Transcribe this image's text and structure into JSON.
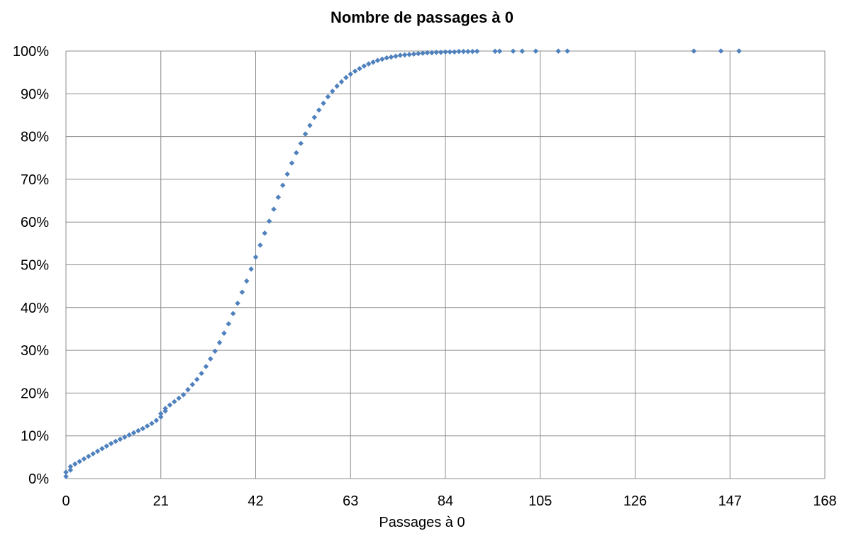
{
  "chart_data": {
    "type": "scatter",
    "title": "Nombre de passages à 0",
    "xlabel": "Passages à 0",
    "ylabel": "",
    "xlim": [
      0,
      168
    ],
    "ylim": [
      0,
      1
    ],
    "x_ticks": [
      0,
      21,
      42,
      63,
      84,
      105,
      126,
      147,
      168
    ],
    "x_tick_labels": [
      "0",
      "21",
      "42",
      "63",
      "84",
      "105",
      "126",
      "147",
      "168"
    ],
    "y_ticks": [
      0,
      0.1,
      0.2,
      0.3,
      0.4,
      0.5,
      0.6,
      0.7,
      0.8,
      0.9,
      1.0
    ],
    "y_tick_labels": [
      "0%",
      "10%",
      "20%",
      "30%",
      "40%",
      "50%",
      "60%",
      "70%",
      "80%",
      "90%",
      "100%"
    ],
    "grid": true,
    "marker_color": "#4F81BD",
    "series": [
      {
        "points": [
          [
            0,
            0.005
          ],
          [
            0,
            0.015
          ],
          [
            1,
            0.02
          ],
          [
            1,
            0.028
          ],
          [
            2,
            0.034
          ],
          [
            3,
            0.04
          ],
          [
            4,
            0.046
          ],
          [
            5,
            0.052
          ],
          [
            6,
            0.058
          ],
          [
            7,
            0.064
          ],
          [
            8,
            0.07
          ],
          [
            9,
            0.076
          ],
          [
            10,
            0.082
          ],
          [
            11,
            0.087
          ],
          [
            12,
            0.092
          ],
          [
            13,
            0.097
          ],
          [
            14,
            0.102
          ],
          [
            15,
            0.107
          ],
          [
            16,
            0.112
          ],
          [
            17,
            0.117
          ],
          [
            18,
            0.123
          ],
          [
            19,
            0.129
          ],
          [
            20,
            0.136
          ],
          [
            21,
            0.144
          ],
          [
            21,
            0.152
          ],
          [
            22,
            0.158
          ],
          [
            22,
            0.164
          ],
          [
            23,
            0.172
          ],
          [
            24,
            0.18
          ],
          [
            25,
            0.188
          ],
          [
            26,
            0.196
          ],
          [
            27,
            0.208
          ],
          [
            28,
            0.22
          ],
          [
            29,
            0.232
          ],
          [
            30,
            0.246
          ],
          [
            31,
            0.262
          ],
          [
            32,
            0.28
          ],
          [
            33,
            0.298
          ],
          [
            34,
            0.318
          ],
          [
            35,
            0.34
          ],
          [
            36,
            0.362
          ],
          [
            37,
            0.386
          ],
          [
            38,
            0.41
          ],
          [
            39,
            0.436
          ],
          [
            40,
            0.462
          ],
          [
            41,
            0.49
          ],
          [
            42,
            0.518
          ],
          [
            43,
            0.546
          ],
          [
            44,
            0.574
          ],
          [
            45,
            0.602
          ],
          [
            46,
            0.63
          ],
          [
            47,
            0.658
          ],
          [
            48,
            0.686
          ],
          [
            49,
            0.712
          ],
          [
            50,
            0.738
          ],
          [
            51,
            0.762
          ],
          [
            52,
            0.784
          ],
          [
            53,
            0.806
          ],
          [
            54,
            0.826
          ],
          [
            55,
            0.845
          ],
          [
            56,
            0.862
          ],
          [
            57,
            0.878
          ],
          [
            58,
            0.893
          ],
          [
            59,
            0.906
          ],
          [
            60,
            0.918
          ],
          [
            61,
            0.928
          ],
          [
            62,
            0.938
          ],
          [
            63,
            0.946
          ],
          [
            64,
            0.953
          ],
          [
            65,
            0.959
          ],
          [
            66,
            0.965
          ],
          [
            67,
            0.97
          ],
          [
            68,
            0.974
          ],
          [
            69,
            0.978
          ],
          [
            70,
            0.981
          ],
          [
            71,
            0.984
          ],
          [
            72,
            0.986
          ],
          [
            73,
            0.988
          ],
          [
            74,
            0.99
          ],
          [
            75,
            0.991
          ],
          [
            76,
            0.992
          ],
          [
            77,
            0.993
          ],
          [
            78,
            0.994
          ],
          [
            79,
            0.995
          ],
          [
            80,
            0.996
          ],
          [
            81,
            0.996
          ],
          [
            82,
            0.997
          ],
          [
            83,
            0.997
          ],
          [
            84,
            0.998
          ],
          [
            85,
            0.998
          ],
          [
            86,
            0.998
          ],
          [
            87,
            0.999
          ],
          [
            88,
            0.999
          ],
          [
            89,
            0.999
          ],
          [
            90,
            0.999
          ],
          [
            91,
            0.9995
          ],
          [
            95,
            0.9995
          ],
          [
            96,
            0.9996
          ],
          [
            99,
            0.9997
          ],
          [
            101,
            0.9997
          ],
          [
            104,
            0.9998
          ],
          [
            109,
            0.9998
          ],
          [
            111,
            0.9999
          ],
          [
            139,
            0.9999
          ],
          [
            145,
            0.99995
          ],
          [
            149,
            1.0
          ]
        ]
      }
    ]
  }
}
